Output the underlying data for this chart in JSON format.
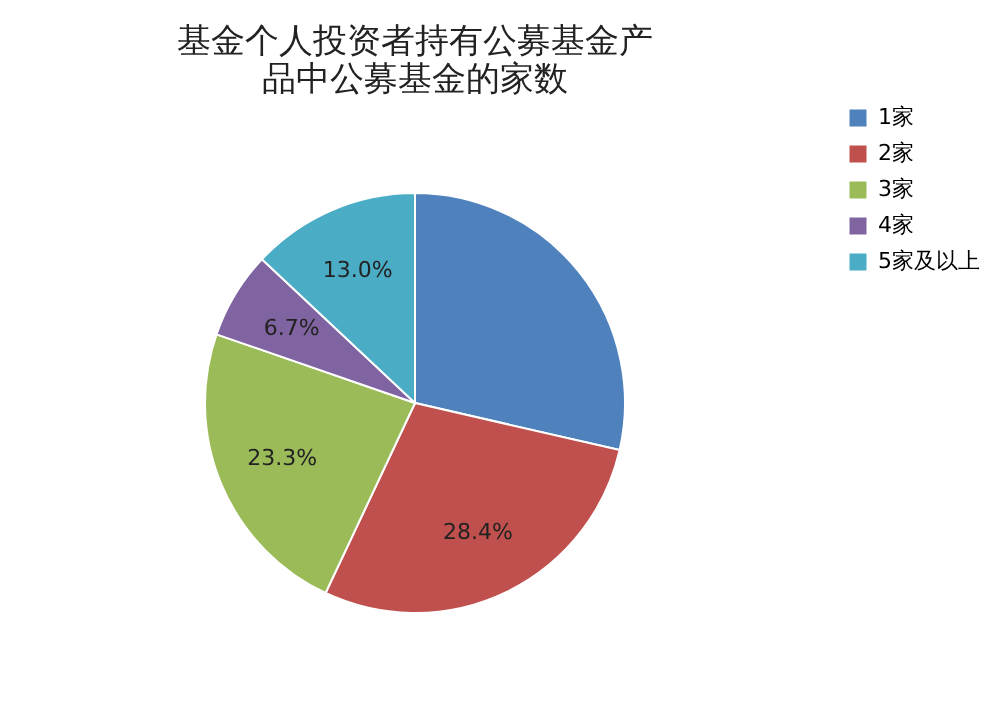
{
  "chart_data": {
    "type": "pie",
    "title": "基金个人投资者持有公募基金产品中公募基金的家数",
    "categories": [
      "1家",
      "2家",
      "3家",
      "4家",
      "5家及以上"
    ],
    "values": [
      28.6,
      28.4,
      23.3,
      6.7,
      13.0
    ],
    "value_labels": [
      null,
      "28.4%",
      "23.3%",
      "6.7%",
      "13.0%"
    ],
    "colors": [
      "#4f81bd",
      "#c0504d",
      "#9bbb59",
      "#8064a2",
      "#4bacc6"
    ],
    "legend": "right"
  }
}
